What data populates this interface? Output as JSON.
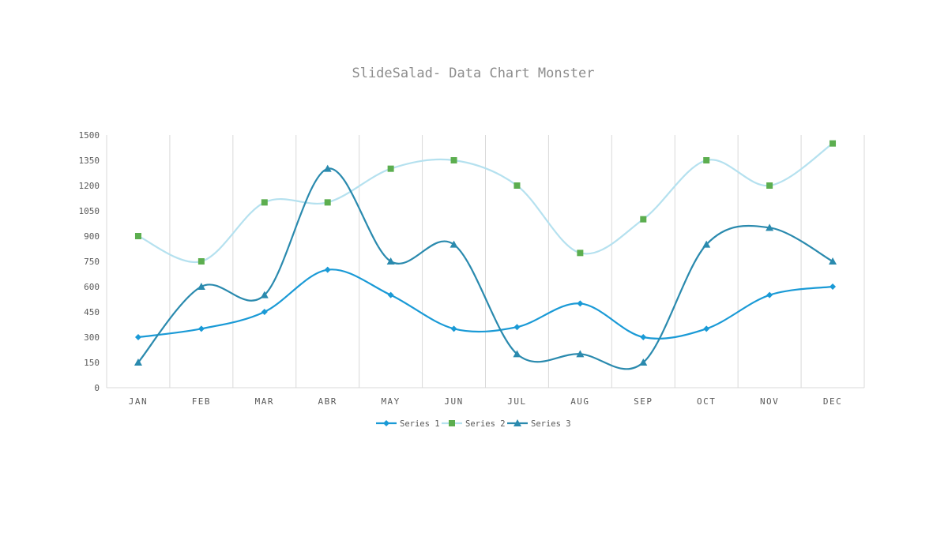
{
  "chart_data": {
    "type": "line",
    "title": "SlideSalad- Data Chart Monster",
    "xlabel": "",
    "ylabel": "",
    "categories": [
      "JAN",
      "FEB",
      "MAR",
      "ABR",
      "MAY",
      "JUN",
      "JUL",
      "AUG",
      "SEP",
      "OCT",
      "NOV",
      "DEC"
    ],
    "ylim": [
      0,
      1500
    ],
    "yticks": [
      "0",
      "150",
      "300",
      "450",
      "600",
      "750",
      "900",
      "1050",
      "1200",
      "1350",
      "1500"
    ],
    "grid": "vertical",
    "legend_position": "bottom",
    "smooth": true,
    "series": [
      {
        "name": "Series 1",
        "marker": "diamond",
        "color": "#1a9ad6",
        "marker_color": "#1a9ad6",
        "values": [
          300,
          350,
          450,
          700,
          550,
          350,
          360,
          500,
          300,
          350,
          550,
          600
        ]
      },
      {
        "name": "Series 2",
        "marker": "square",
        "color": "#b5e1ef",
        "marker_color": "#5cae4f",
        "values": [
          900,
          750,
          1100,
          1100,
          1300,
          1350,
          1200,
          800,
          1000,
          1350,
          1200,
          1450
        ]
      },
      {
        "name": "Series 3",
        "marker": "triangle",
        "color": "#2a8aae",
        "marker_color": "#2a8aae",
        "values": [
          150,
          600,
          550,
          1300,
          750,
          850,
          200,
          200,
          150,
          850,
          950,
          750
        ]
      }
    ]
  }
}
